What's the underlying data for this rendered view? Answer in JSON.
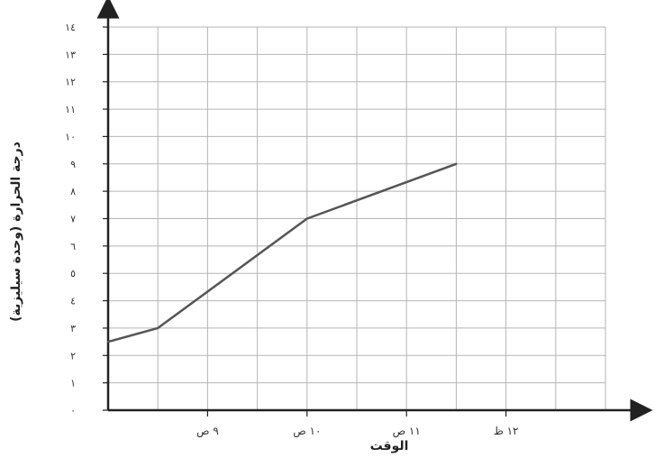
{
  "chart_data": {
    "type": "line",
    "title": "",
    "xlabel": "الوقت",
    "ylabel": "درجة الحرارة (وحدة سيليزية)",
    "y_ticks": [
      "٠",
      "١",
      "٢",
      "٣",
      "٤",
      "٥",
      "٦",
      "٧",
      "٨",
      "٩",
      "١٠",
      "١١",
      "١٢",
      "١٣",
      "١٤"
    ],
    "x_ticks": [
      {
        "t": 9,
        "label": "٩ ص"
      },
      {
        "t": 10,
        "label": "١٠ ص"
      },
      {
        "t": 11,
        "label": "١١ ص"
      },
      {
        "t": 12,
        "label": "١٢ ظ"
      }
    ],
    "xlim": [
      8,
      13
    ],
    "ylim": [
      0,
      14
    ],
    "grid": true,
    "series": [
      {
        "points": [
          {
            "x": 8.0,
            "y": 2.5
          },
          {
            "x": 8.5,
            "y": 3.0
          },
          {
            "x": 10.0,
            "y": 7.0
          },
          {
            "x": 11.5,
            "y": 9.0
          }
        ]
      }
    ],
    "line_color": "#555555"
  }
}
